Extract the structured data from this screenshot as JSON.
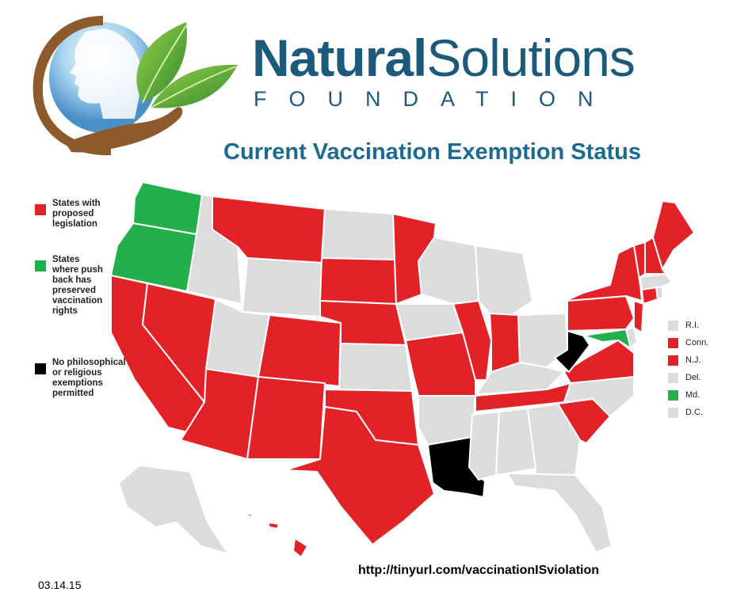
{
  "brand": {
    "name_bold": "Natural",
    "name_regular": "Solutions",
    "subtitle": "FOUNDATION"
  },
  "title": "Current Vaccination Exemption Status",
  "colors": {
    "proposed_legislation": "#e32227",
    "preserved_rights": "#23b04c",
    "no_exemptions": "#000000",
    "no_status": "#dcdcdc",
    "brand_blue": "#1c5a7c"
  },
  "legend": [
    {
      "key": "proposed",
      "label": "States with proposed legislation",
      "color": "#e32227"
    },
    {
      "key": "preserved",
      "label": "States where push back has preserved vaccination rights",
      "color": "#23b04c"
    },
    {
      "key": "none",
      "label": "No philosophical or religious exemptions permitted",
      "color": "#000000"
    }
  ],
  "small_states": [
    {
      "label": "R.I.",
      "color": "#dcdcdc"
    },
    {
      "label": "Conn.",
      "color": "#e32227"
    },
    {
      "label": "N.J.",
      "color": "#e32227"
    },
    {
      "label": "Del.",
      "color": "#dcdcdc"
    },
    {
      "label": "Md.",
      "color": "#23b04c"
    },
    {
      "label": "D.C.",
      "color": "#dcdcdc"
    }
  ],
  "url": "http://tinyurl.com/vaccinationISviolation",
  "date": "03.14.15"
}
